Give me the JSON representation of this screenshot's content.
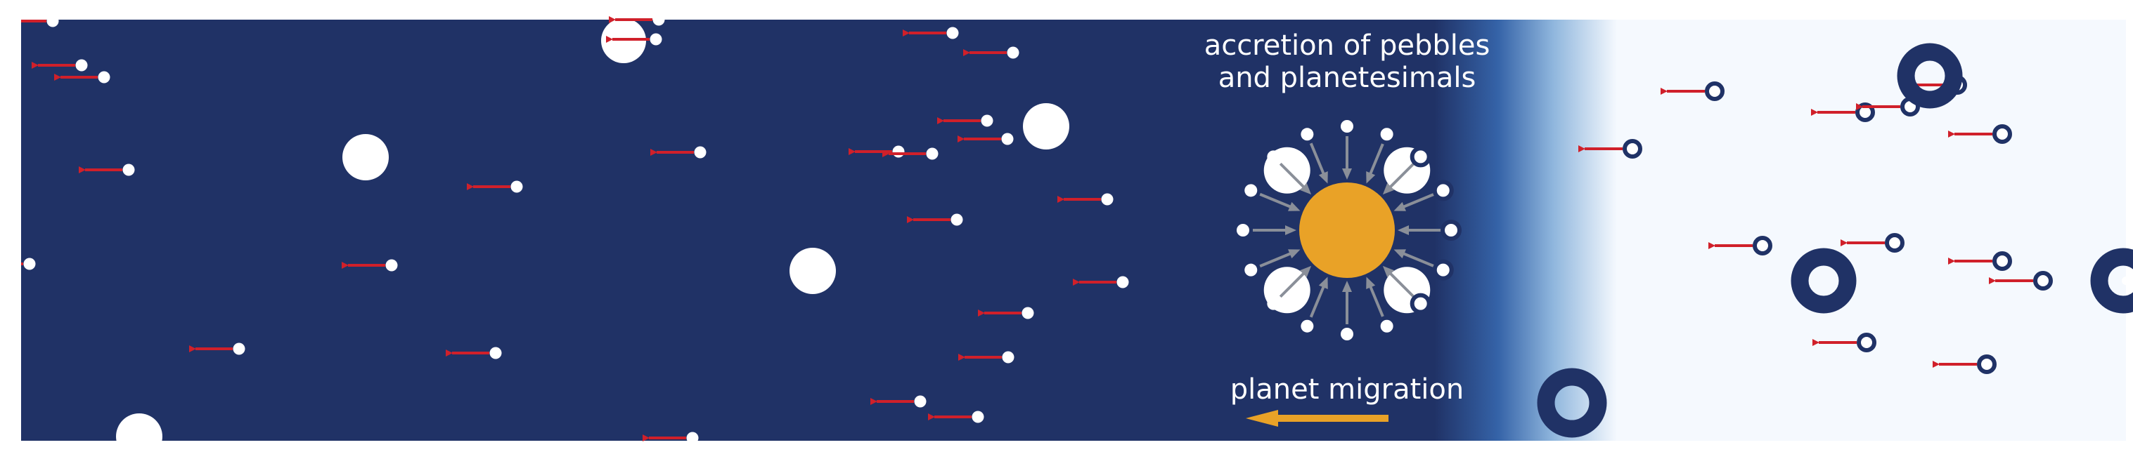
{
  "labels": {
    "accretion_line1": "accretion of pebbles",
    "accretion_line2": "and planetesimals",
    "migration": "planet migration"
  },
  "colors": {
    "disk_inner": "#203266",
    "disk_outer": "#f5f9fe",
    "transition_mid": "#4f86c2",
    "planet": "#e9a227",
    "drift_arrow": "#d0202a",
    "accretion_arrow": "#8a8f99",
    "body_fill": "#ffffff",
    "icy_ring": "#203266"
  },
  "icons": {
    "drift": "left-arrow",
    "migration": "left-arrow",
    "accretion": "inward-arrows"
  }
}
